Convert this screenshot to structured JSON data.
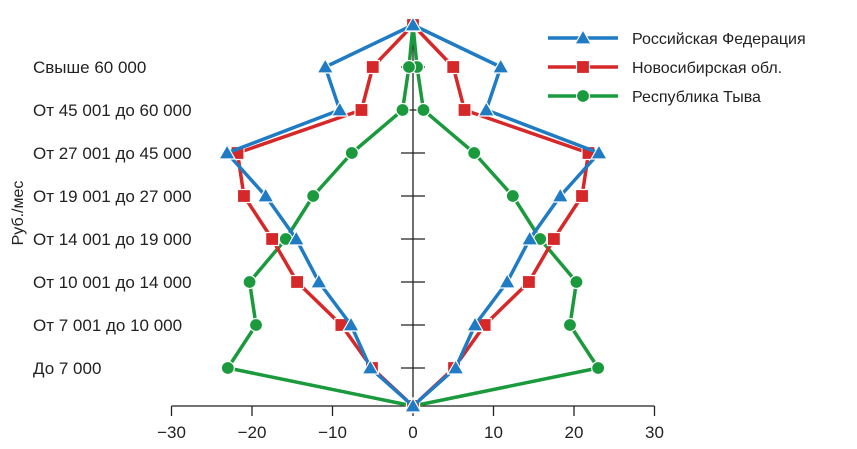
{
  "chart_data": {
    "type": "line",
    "title": "",
    "xlabel": "",
    "ylabel": "Руб./мес",
    "xlim": [
      -30,
      30
    ],
    "x_ticks": [
      -30,
      -20,
      -10,
      0,
      10,
      20,
      30
    ],
    "x_tick_labels": [
      "−30",
      "−20",
      "−10",
      "0",
      "10",
      "20",
      "30"
    ],
    "categories": [
      "До 7 000",
      "От 7 001 до 10 000",
      "От 10 001 до 14 000",
      "От 14 001 до 19 000",
      "От 19 001 до 27 000",
      "От 27 001 до 45 000",
      "От 45 001 до 60 000",
      "Свыше 60 000"
    ],
    "grid": false,
    "legend_position": "top-right",
    "series": [
      {
        "name": "Российская Федерация",
        "color": "#1f7bc4",
        "marker": "triangle",
        "values": [
          5.3,
          7.7,
          11.7,
          14.5,
          18.3,
          23.1,
          9.1,
          10.9
        ]
      },
      {
        "name": "Новосибирская обл.",
        "color": "#d62828",
        "marker": "square",
        "values": [
          5.1,
          8.9,
          14.4,
          17.5,
          21.0,
          21.8,
          6.4,
          5.0
        ]
      },
      {
        "name": "Республика Тыва",
        "color": "#1a9a3c",
        "marker": "circle",
        "values": [
          23.0,
          19.5,
          20.3,
          15.8,
          12.4,
          7.6,
          1.3,
          0.5
        ]
      }
    ]
  }
}
